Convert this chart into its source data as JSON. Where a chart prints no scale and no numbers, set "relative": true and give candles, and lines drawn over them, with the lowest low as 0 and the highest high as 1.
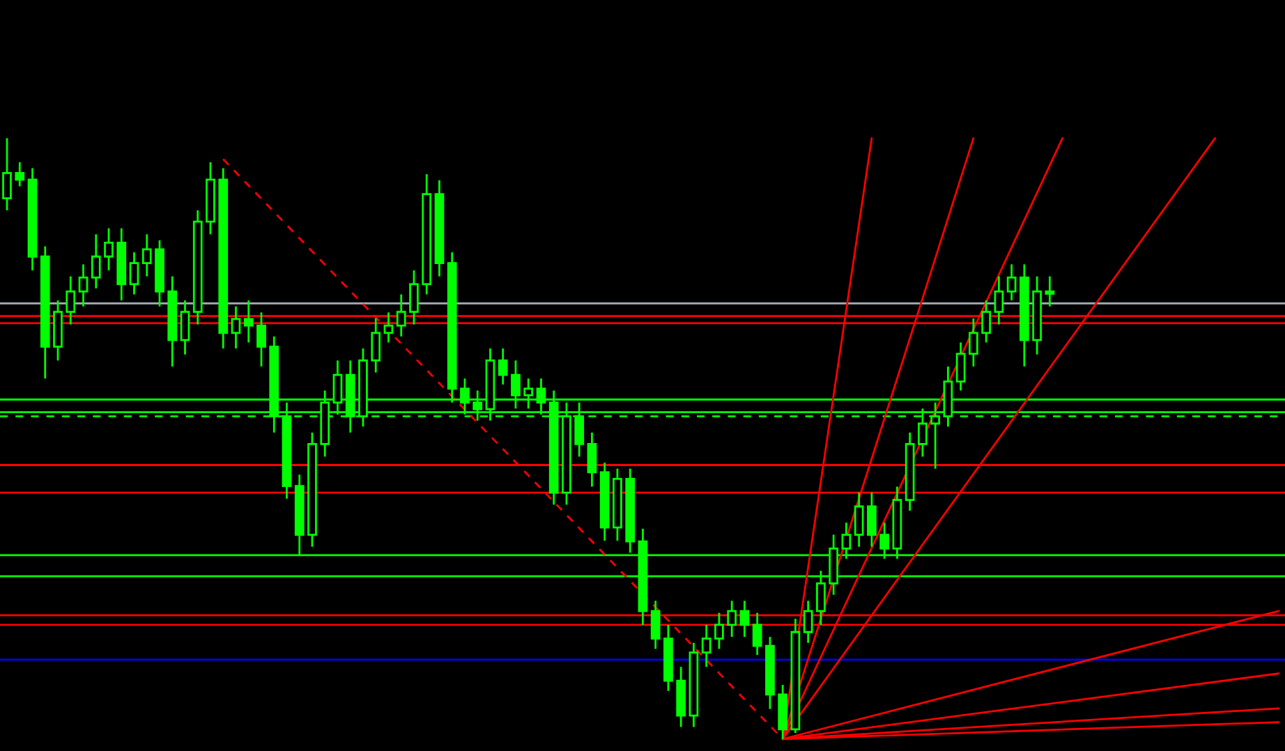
{
  "chart_data": {
    "type": "candlestick",
    "relative": true,
    "color": "#00ff00",
    "categories": [
      null,
      null,
      null,
      null,
      null,
      null,
      null,
      null,
      null,
      null,
      null,
      null,
      null,
      null,
      null,
      null,
      null,
      null,
      null,
      null,
      null,
      null,
      null,
      null,
      null,
      null,
      null,
      null,
      null,
      null,
      null,
      null,
      null,
      null,
      null,
      null,
      null,
      null,
      null,
      null,
      null,
      null,
      null,
      null,
      null,
      null,
      null,
      null,
      null,
      null,
      null,
      null,
      null,
      null,
      null,
      null,
      null,
      null,
      null,
      null,
      null,
      null,
      null,
      null,
      null,
      null,
      null,
      null,
      null,
      null,
      null,
      null,
      null,
      null,
      null,
      null,
      null,
      null,
      null,
      null,
      null,
      null,
      null,
      null,
      null,
      null,
      null,
      null,
      null,
      null,
      null,
      null,
      null,
      null,
      null,
      null,
      null,
      null,
      null,
      null,
      null
    ],
    "ohlc": [
      [
        0.9,
        1.0,
        0.88,
        0.942
      ],
      [
        0.942,
        0.96,
        0.92,
        0.931
      ],
      [
        0.931,
        0.95,
        0.78,
        0.803
      ],
      [
        0.803,
        0.82,
        0.6,
        0.653
      ],
      [
        0.653,
        0.73,
        0.63,
        0.711
      ],
      [
        0.711,
        0.77,
        0.69,
        0.745
      ],
      [
        0.745,
        0.79,
        0.72,
        0.768
      ],
      [
        0.768,
        0.84,
        0.75,
        0.803
      ],
      [
        0.803,
        0.85,
        0.78,
        0.826
      ],
      [
        0.826,
        0.85,
        0.73,
        0.757
      ],
      [
        0.757,
        0.81,
        0.74,
        0.792
      ],
      [
        0.792,
        0.84,
        0.77,
        0.815
      ],
      [
        0.815,
        0.83,
        0.72,
        0.745
      ],
      [
        0.745,
        0.77,
        0.62,
        0.664
      ],
      [
        0.664,
        0.73,
        0.64,
        0.711
      ],
      [
        0.711,
        0.88,
        0.69,
        0.861
      ],
      [
        0.861,
        0.96,
        0.84,
        0.931
      ],
      [
        0.931,
        0.95,
        0.65,
        0.676
      ],
      [
        0.676,
        0.72,
        0.65,
        0.699
      ],
      [
        0.699,
        0.73,
        0.66,
        0.688
      ],
      [
        0.688,
        0.71,
        0.62,
        0.653
      ],
      [
        0.653,
        0.67,
        0.51,
        0.537
      ],
      [
        0.537,
        0.56,
        0.4,
        0.421
      ],
      [
        0.421,
        0.44,
        0.306,
        0.34
      ],
      [
        0.34,
        0.51,
        0.32,
        0.491
      ],
      [
        0.491,
        0.58,
        0.47,
        0.56
      ],
      [
        0.56,
        0.63,
        0.54,
        0.606
      ],
      [
        0.606,
        0.63,
        0.51,
        0.537
      ],
      [
        0.537,
        0.65,
        0.52,
        0.63
      ],
      [
        0.63,
        0.7,
        0.61,
        0.676
      ],
      [
        0.676,
        0.71,
        0.66,
        0.688
      ],
      [
        0.688,
        0.74,
        0.67,
        0.711
      ],
      [
        0.711,
        0.78,
        0.69,
        0.757
      ],
      [
        0.757,
        0.94,
        0.74,
        0.907
      ],
      [
        0.907,
        0.93,
        0.77,
        0.792
      ],
      [
        0.792,
        0.81,
        0.56,
        0.583
      ],
      [
        0.583,
        0.6,
        0.54,
        0.56
      ],
      [
        0.56,
        0.58,
        0.53,
        0.549
      ],
      [
        0.549,
        0.65,
        0.53,
        0.63
      ],
      [
        0.63,
        0.65,
        0.59,
        0.606
      ],
      [
        0.606,
        0.63,
        0.55,
        0.572
      ],
      [
        0.572,
        0.6,
        0.55,
        0.583
      ],
      [
        0.583,
        0.6,
        0.54,
        0.56
      ],
      [
        0.56,
        0.58,
        0.39,
        0.41
      ],
      [
        0.41,
        0.56,
        0.39,
        0.537
      ],
      [
        0.537,
        0.56,
        0.47,
        0.491
      ],
      [
        0.491,
        0.51,
        0.42,
        0.444
      ],
      [
        0.444,
        0.46,
        0.33,
        0.352
      ],
      [
        0.352,
        0.45,
        0.33,
        0.433
      ],
      [
        0.433,
        0.45,
        0.31,
        0.329
      ],
      [
        0.329,
        0.35,
        0.19,
        0.213
      ],
      [
        0.213,
        0.23,
        0.15,
        0.167
      ],
      [
        0.167,
        0.19,
        0.08,
        0.097
      ],
      [
        0.097,
        0.12,
        0.02,
        0.039
      ],
      [
        0.039,
        0.16,
        0.02,
        0.144
      ],
      [
        0.144,
        0.19,
        0.12,
        0.167
      ],
      [
        0.167,
        0.21,
        0.15,
        0.19
      ],
      [
        0.19,
        0.23,
        0.17,
        0.213
      ],
      [
        0.213,
        0.23,
        0.17,
        0.19
      ],
      [
        0.19,
        0.21,
        0.14,
        0.155
      ],
      [
        0.155,
        0.17,
        0.05,
        0.074
      ],
      [
        0.074,
        0.09,
        0.0,
        0.016
      ],
      [
        0.016,
        0.2,
        0.01,
        0.178
      ],
      [
        0.178,
        0.23,
        0.16,
        0.213
      ],
      [
        0.213,
        0.28,
        0.19,
        0.259
      ],
      [
        0.259,
        0.34,
        0.24,
        0.317
      ],
      [
        0.317,
        0.36,
        0.3,
        0.34
      ],
      [
        0.34,
        0.41,
        0.32,
        0.387
      ],
      [
        0.387,
        0.41,
        0.32,
        0.34
      ],
      [
        0.34,
        0.36,
        0.3,
        0.317
      ],
      [
        0.317,
        0.42,
        0.3,
        0.398
      ],
      [
        0.398,
        0.51,
        0.38,
        0.491
      ],
      [
        0.491,
        0.55,
        0.47,
        0.525
      ],
      [
        0.525,
        0.56,
        0.45,
        0.537
      ],
      [
        0.537,
        0.62,
        0.52,
        0.595
      ],
      [
        0.595,
        0.66,
        0.58,
        0.641
      ],
      [
        0.641,
        0.7,
        0.62,
        0.676
      ],
      [
        0.676,
        0.73,
        0.66,
        0.711
      ],
      [
        0.711,
        0.77,
        0.69,
        0.745
      ],
      [
        0.745,
        0.79,
        0.73,
        0.768
      ],
      [
        0.768,
        0.79,
        0.62,
        0.664
      ],
      [
        0.664,
        0.77,
        0.64,
        0.745
      ],
      [
        0.745,
        0.77,
        0.72,
        0.741
      ],
      null,
      null,
      null,
      null,
      null,
      null,
      null,
      null,
      null,
      null,
      null,
      null,
      null,
      null,
      null,
      null,
      null,
      null
    ],
    "series": [
      {
        "type": "line",
        "color": "#ff0000",
        "line_style": "dashed",
        "values": [
          null,
          null,
          null,
          null,
          null,
          null,
          null,
          null,
          null,
          null,
          null,
          null,
          null,
          null,
          null,
          null,
          null,
          0.965,
          null,
          null,
          null,
          null,
          null,
          null,
          null,
          null,
          null,
          null,
          null,
          null,
          null,
          null,
          null,
          null,
          null,
          null,
          null,
          null,
          null,
          null,
          null,
          null,
          null,
          null,
          null,
          null,
          null,
          null,
          null,
          null,
          null,
          null,
          null,
          null,
          null,
          null,
          null,
          null,
          null,
          null,
          null,
          0.0,
          null,
          null,
          null,
          null,
          null,
          null,
          null,
          null,
          null,
          null,
          null,
          null,
          null,
          null,
          null,
          null,
          null,
          null,
          null,
          null,
          null,
          null,
          null,
          null,
          null,
          null,
          null,
          null,
          null,
          null,
          null,
          null,
          null,
          null,
          null,
          null,
          null,
          null,
          null
        ]
      },
      {
        "type": "line",
        "color": "#ff0000",
        "values": [
          null,
          null,
          null,
          null,
          null,
          null,
          null,
          null,
          null,
          null,
          null,
          null,
          null,
          null,
          null,
          null,
          null,
          null,
          null,
          null,
          null,
          null,
          null,
          null,
          null,
          null,
          null,
          null,
          null,
          null,
          null,
          null,
          null,
          null,
          null,
          null,
          null,
          null,
          null,
          null,
          null,
          null,
          null,
          null,
          null,
          null,
          null,
          null,
          null,
          null,
          null,
          null,
          null,
          null,
          null,
          null,
          null,
          null,
          null,
          null,
          null,
          0.0,
          null,
          null,
          null,
          null,
          null,
          null,
          1.0,
          null,
          null,
          null,
          null,
          null,
          null,
          null,
          null,
          null,
          null,
          null,
          null,
          null,
          null,
          null,
          null,
          null,
          null,
          null,
          null,
          null,
          null,
          null,
          null,
          null,
          null,
          null,
          null,
          null,
          null,
          null,
          null
        ]
      },
      {
        "type": "line",
        "color": "#ff0000",
        "values": [
          null,
          null,
          null,
          null,
          null,
          null,
          null,
          null,
          null,
          null,
          null,
          null,
          null,
          null,
          null,
          null,
          null,
          null,
          null,
          null,
          null,
          null,
          null,
          null,
          null,
          null,
          null,
          null,
          null,
          null,
          null,
          null,
          null,
          null,
          null,
          null,
          null,
          null,
          null,
          null,
          null,
          null,
          null,
          null,
          null,
          null,
          null,
          null,
          null,
          null,
          null,
          null,
          null,
          null,
          null,
          null,
          null,
          null,
          null,
          null,
          null,
          0.0,
          null,
          null,
          null,
          null,
          null,
          null,
          null,
          null,
          null,
          null,
          null,
          null,
          null,
          null,
          1.0,
          null,
          null,
          null,
          null,
          null,
          null,
          null,
          null,
          null,
          null,
          null,
          null,
          null,
          null,
          null,
          null,
          null,
          null,
          null,
          null,
          null,
          null,
          null,
          null
        ]
      },
      {
        "type": "line",
        "color": "#ff0000",
        "values": [
          null,
          null,
          null,
          null,
          null,
          null,
          null,
          null,
          null,
          null,
          null,
          null,
          null,
          null,
          null,
          null,
          null,
          null,
          null,
          null,
          null,
          null,
          null,
          null,
          null,
          null,
          null,
          null,
          null,
          null,
          null,
          null,
          null,
          null,
          null,
          null,
          null,
          null,
          null,
          null,
          null,
          null,
          null,
          null,
          null,
          null,
          null,
          null,
          null,
          null,
          null,
          null,
          null,
          null,
          null,
          null,
          null,
          null,
          null,
          null,
          null,
          0.0,
          null,
          null,
          null,
          null,
          null,
          null,
          null,
          null,
          null,
          null,
          null,
          null,
          null,
          null,
          null,
          null,
          null,
          null,
          null,
          null,
          null,
          1.0,
          null,
          null,
          null,
          null,
          null,
          null,
          null,
          null,
          null,
          null,
          null,
          null,
          null,
          null,
          null,
          null,
          null
        ]
      },
      {
        "type": "line",
        "color": "#ff0000",
        "values": [
          null,
          null,
          null,
          null,
          null,
          null,
          null,
          null,
          null,
          null,
          null,
          null,
          null,
          null,
          null,
          null,
          null,
          null,
          null,
          null,
          null,
          null,
          null,
          null,
          null,
          null,
          null,
          null,
          null,
          null,
          null,
          null,
          null,
          null,
          null,
          null,
          null,
          null,
          null,
          null,
          null,
          null,
          null,
          null,
          null,
          null,
          null,
          null,
          null,
          null,
          null,
          null,
          null,
          null,
          null,
          null,
          null,
          null,
          null,
          null,
          null,
          0.0,
          null,
          null,
          null,
          null,
          null,
          null,
          null,
          null,
          null,
          null,
          null,
          null,
          null,
          null,
          null,
          null,
          null,
          null,
          null,
          null,
          null,
          null,
          null,
          null,
          null,
          null,
          null,
          null,
          null,
          null,
          null,
          null,
          null,
          1.0,
          null,
          null,
          null,
          null,
          null
        ]
      },
      {
        "type": "line",
        "color": "#ff0000",
        "values": [
          null,
          null,
          null,
          null,
          null,
          null,
          null,
          null,
          null,
          null,
          null,
          null,
          null,
          null,
          null,
          null,
          null,
          null,
          null,
          null,
          null,
          null,
          null,
          null,
          null,
          null,
          null,
          null,
          null,
          null,
          null,
          null,
          null,
          null,
          null,
          null,
          null,
          null,
          null,
          null,
          null,
          null,
          null,
          null,
          null,
          null,
          null,
          null,
          null,
          null,
          null,
          null,
          null,
          null,
          null,
          null,
          null,
          null,
          null,
          null,
          null,
          0.0,
          null,
          null,
          null,
          null,
          null,
          null,
          null,
          null,
          null,
          null,
          null,
          null,
          null,
          null,
          null,
          null,
          null,
          null,
          null,
          null,
          null,
          null,
          null,
          null,
          null,
          null,
          null,
          null,
          null,
          null,
          null,
          null,
          null,
          null,
          null,
          null,
          null,
          null,
          0.213
        ]
      },
      {
        "type": "line",
        "color": "#ff0000",
        "values": [
          null,
          null,
          null,
          null,
          null,
          null,
          null,
          null,
          null,
          null,
          null,
          null,
          null,
          null,
          null,
          null,
          null,
          null,
          null,
          null,
          null,
          null,
          null,
          null,
          null,
          null,
          null,
          null,
          null,
          null,
          null,
          null,
          null,
          null,
          null,
          null,
          null,
          null,
          null,
          null,
          null,
          null,
          null,
          null,
          null,
          null,
          null,
          null,
          null,
          null,
          null,
          null,
          null,
          null,
          null,
          null,
          null,
          null,
          null,
          null,
          null,
          0.0,
          null,
          null,
          null,
          null,
          null,
          null,
          null,
          null,
          null,
          null,
          null,
          null,
          null,
          null,
          null,
          null,
          null,
          null,
          null,
          null,
          null,
          null,
          null,
          null,
          null,
          null,
          null,
          null,
          null,
          null,
          null,
          null,
          null,
          null,
          null,
          null,
          null,
          null,
          0.109
        ]
      },
      {
        "type": "line",
        "color": "#ff0000",
        "values": [
          null,
          null,
          null,
          null,
          null,
          null,
          null,
          null,
          null,
          null,
          null,
          null,
          null,
          null,
          null,
          null,
          null,
          null,
          null,
          null,
          null,
          null,
          null,
          null,
          null,
          null,
          null,
          null,
          null,
          null,
          null,
          null,
          null,
          null,
          null,
          null,
          null,
          null,
          null,
          null,
          null,
          null,
          null,
          null,
          null,
          null,
          null,
          null,
          null,
          null,
          null,
          null,
          null,
          null,
          null,
          null,
          null,
          null,
          null,
          null,
          null,
          0.0,
          null,
          null,
          null,
          null,
          null,
          null,
          null,
          null,
          null,
          null,
          null,
          null,
          null,
          null,
          null,
          null,
          null,
          null,
          null,
          null,
          null,
          null,
          null,
          null,
          null,
          null,
          null,
          null,
          null,
          null,
          null,
          null,
          null,
          null,
          null,
          null,
          null,
          null,
          0.051
        ]
      },
      {
        "type": "line",
        "color": "#ff0000",
        "values": [
          null,
          null,
          null,
          null,
          null,
          null,
          null,
          null,
          null,
          null,
          null,
          null,
          null,
          null,
          null,
          null,
          null,
          null,
          null,
          null,
          null,
          null,
          null,
          null,
          null,
          null,
          null,
          null,
          null,
          null,
          null,
          null,
          null,
          null,
          null,
          null,
          null,
          null,
          null,
          null,
          null,
          null,
          null,
          null,
          null,
          null,
          null,
          null,
          null,
          null,
          null,
          null,
          null,
          null,
          null,
          null,
          null,
          null,
          null,
          null,
          null,
          0.0,
          null,
          null,
          null,
          null,
          null,
          null,
          null,
          null,
          null,
          null,
          null,
          null,
          null,
          null,
          null,
          null,
          null,
          null,
          null,
          null,
          null,
          null,
          null,
          null,
          null,
          null,
          null,
          null,
          null,
          null,
          null,
          null,
          null,
          null,
          null,
          null,
          null,
          null,
          0.028
        ]
      }
    ],
    "ref_lines": [
      {
        "axis": "y",
        "value": 0.725,
        "color": "#9aa4ae"
      },
      {
        "axis": "y",
        "value": 0.704,
        "color": "#ff0000"
      },
      {
        "axis": "y",
        "value": 0.692,
        "color": "#ff0000"
      },
      {
        "axis": "y",
        "value": 0.565,
        "color": "#00ff00"
      },
      {
        "axis": "y",
        "value": 0.544,
        "color": "#00ff00"
      },
      {
        "axis": "y",
        "value": 0.537,
        "color": "#00ff00",
        "line_style": "dashed"
      },
      {
        "axis": "y",
        "value": 0.456,
        "color": "#ff0000"
      },
      {
        "axis": "y",
        "value": 0.41,
        "color": "#ff0000"
      },
      {
        "axis": "y",
        "value": 0.306,
        "color": "#00ff00"
      },
      {
        "axis": "y",
        "value": 0.271,
        "color": "#00ff00"
      },
      {
        "axis": "y",
        "value": 0.206,
        "color": "#ff0000"
      },
      {
        "axis": "y",
        "value": 0.19,
        "color": "#ff0000"
      },
      {
        "axis": "y",
        "value": 0.132,
        "color": "#0000ff"
      }
    ]
  }
}
